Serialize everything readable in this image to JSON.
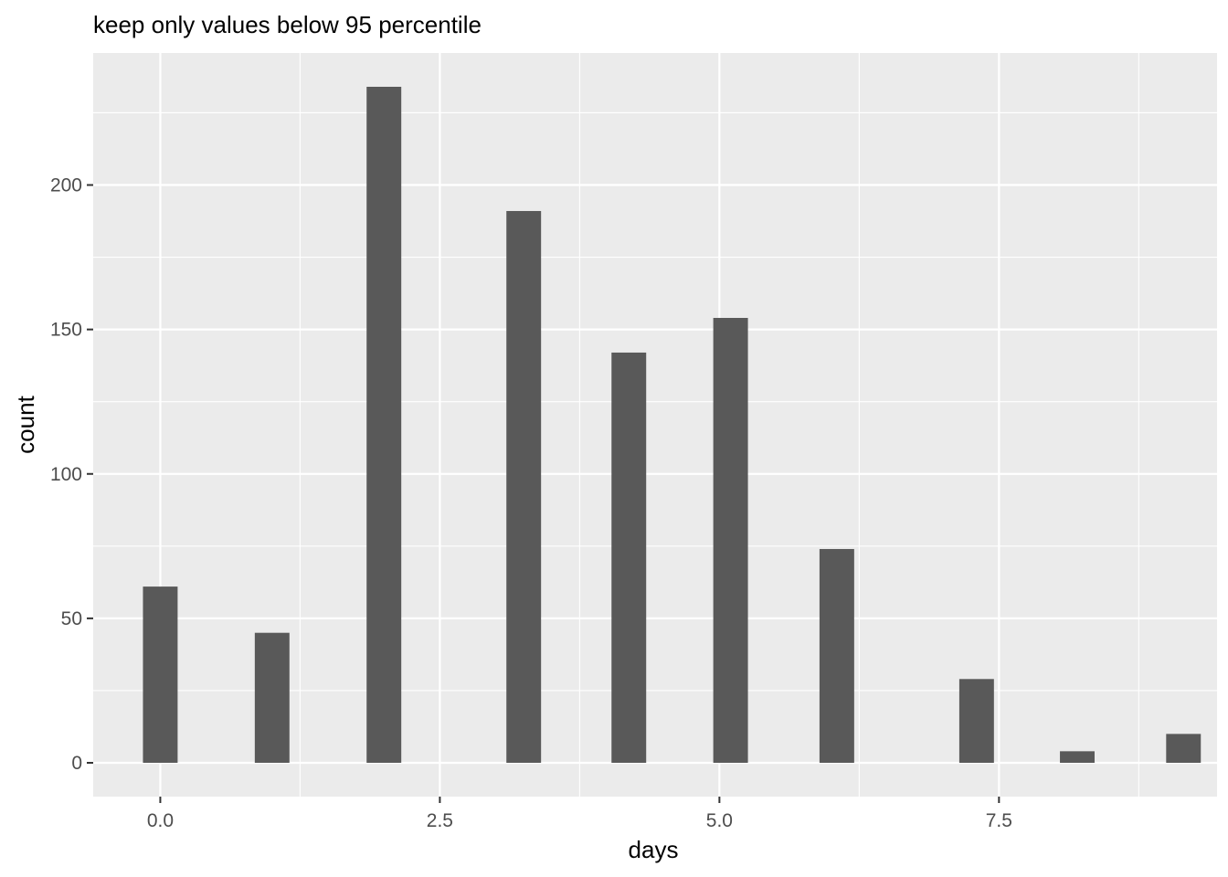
{
  "chart_data": {
    "type": "bar",
    "title": "keep only values below 95 percentile",
    "xlabel": "days",
    "ylabel": "count",
    "x": [
      0,
      1,
      2,
      3.25,
      4.19,
      5.1,
      6.05,
      7.3,
      8.2,
      9.15
    ],
    "values": [
      61,
      45,
      234,
      191,
      142,
      154,
      74,
      29,
      4,
      10
    ],
    "xlim": [
      -0.6,
      9.45
    ],
    "ylim": [
      -11.7,
      245.7
    ],
    "bar_width": 0.31,
    "x_ticks": [
      0,
      2.5,
      5,
      7.5
    ],
    "x_tick_labels": [
      "0.0",
      "2.5",
      "5.0",
      "7.5"
    ],
    "x_minor_ticks": [
      1.25,
      3.75,
      6.25,
      8.75
    ],
    "y_ticks": [
      0,
      50,
      100,
      150,
      200
    ],
    "y_tick_labels": [
      "0",
      "50",
      "100",
      "150",
      "200"
    ],
    "y_minor_ticks": [
      25,
      75,
      125,
      175,
      225
    ],
    "grid": true,
    "legend": "none",
    "colors": {
      "panel": "#ebebeb",
      "bar": "#595959",
      "grid": "#ffffff",
      "tick_label": "#4d4d4d"
    }
  }
}
